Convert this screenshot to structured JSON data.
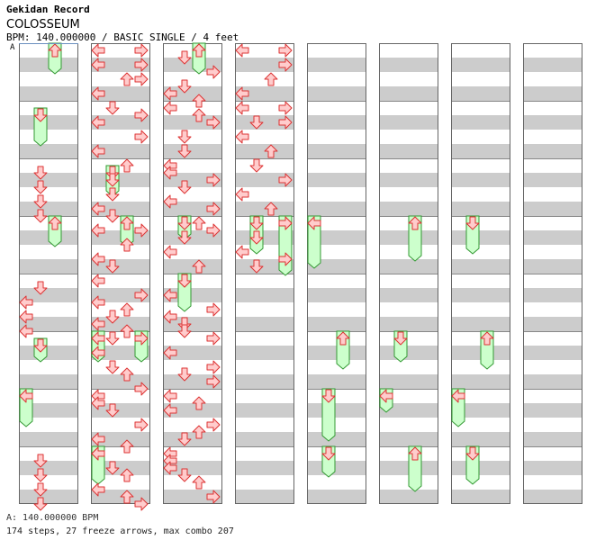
{
  "site_title": "Gekidan Record",
  "song_title": "COLOSSEUM",
  "chart_info": "BPM: 140.000000 / BASIC SINGLE / 4 feet",
  "bpm_marker": "A",
  "footer": {
    "bpm_line": "A: 140.000000 BPM",
    "stats_line": "174 steps, 27 freeze arrows, max combo 207"
  },
  "colors": {
    "stripe_gray": "#cccccc",
    "stripe_white": "#ffffff",
    "arrow_fill": "#ffcccc",
    "arrow_stroke": "#dd3333",
    "freeze_fill": "#ccffcc",
    "freeze_stroke": "#339933",
    "column_border": "#666666"
  },
  "chart_data": {
    "type": "stepchart",
    "lanes": [
      "left",
      "down",
      "up",
      "right"
    ],
    "columns": 8,
    "measures_per_column": 8,
    "beats_per_measure": 4,
    "bpm": 140,
    "difficulty": "BASIC",
    "feet": 4,
    "steps": 174,
    "freeze_arrows": 27,
    "max_combo": 207,
    "arrows": [
      [
        2,
        0.5,
        1
      ],
      [
        2,
        1.5,
        1
      ],
      [
        2,
        2.5,
        1
      ],
      [
        2,
        3.5,
        1
      ],
      [
        4,
        0.5,
        1
      ],
      [
        4,
        1.5,
        0
      ],
      [
        4,
        2.5,
        0
      ],
      [
        4,
        3.5,
        0
      ],
      [
        7,
        0.5,
        1
      ],
      [
        7,
        1.5,
        1
      ],
      [
        7,
        2.5,
        1
      ],
      [
        7,
        3.5,
        1
      ],
      [
        8,
        0.0,
        0
      ],
      [
        8,
        0.0,
        3
      ],
      [
        8,
        1.0,
        0
      ],
      [
        8,
        1.0,
        3
      ],
      [
        8,
        2.0,
        2
      ],
      [
        8,
        2.0,
        3
      ],
      [
        8,
        3.0,
        0
      ],
      [
        9,
        0.0,
        1
      ],
      [
        9,
        0.5,
        3
      ],
      [
        9,
        1.0,
        0
      ],
      [
        9,
        2.0,
        3
      ],
      [
        9,
        3.0,
        0
      ],
      [
        10,
        0.0,
        2
      ],
      [
        10,
        1.0,
        1
      ],
      [
        10,
        2.0,
        1
      ],
      [
        10,
        3.0,
        0
      ],
      [
        10,
        3.5,
        1
      ],
      [
        11,
        0.5,
        0
      ],
      [
        11,
        0.5,
        3
      ],
      [
        11,
        1.5,
        2
      ],
      [
        11,
        2.5,
        0
      ],
      [
        11,
        3.0,
        1
      ],
      [
        12,
        0.0,
        0
      ],
      [
        12,
        1.0,
        3
      ],
      [
        12,
        1.5,
        0
      ],
      [
        12,
        2.0,
        2
      ],
      [
        12,
        2.5,
        1
      ],
      [
        12,
        3.0,
        0
      ],
      [
        12,
        3.5,
        2
      ],
      [
        13,
        0.0,
        1
      ],
      [
        13,
        1.0,
        0
      ],
      [
        13,
        2.0,
        1
      ],
      [
        13,
        2.5,
        2
      ],
      [
        13,
        3.5,
        3
      ],
      [
        14,
        0.0,
        0
      ],
      [
        14,
        0.5,
        0
      ],
      [
        14,
        1.0,
        1
      ],
      [
        14,
        2.0,
        3
      ],
      [
        14,
        3.0,
        0
      ],
      [
        14,
        3.5,
        2
      ],
      [
        15,
        0.0,
        0
      ],
      [
        15,
        1.0,
        1
      ],
      [
        15,
        1.5,
        2
      ],
      [
        15,
        2.5,
        0
      ],
      [
        15,
        3.0,
        2
      ],
      [
        15,
        3.5,
        3
      ],
      [
        16,
        0.0,
        2
      ],
      [
        16,
        0.5,
        1
      ],
      [
        16,
        1.5,
        3
      ],
      [
        16,
        2.5,
        1
      ],
      [
        16,
        3.0,
        0
      ],
      [
        16,
        3.5,
        2
      ],
      [
        17,
        0.0,
        0
      ],
      [
        17,
        0.5,
        2
      ],
      [
        17,
        1.0,
        3
      ],
      [
        17,
        2.0,
        1
      ],
      [
        17,
        3.0,
        1
      ],
      [
        18,
        0.0,
        0
      ],
      [
        18,
        0.5,
        0
      ],
      [
        18,
        1.0,
        3
      ],
      [
        18,
        1.5,
        1
      ],
      [
        18,
        2.5,
        0
      ],
      [
        18,
        3.0,
        3
      ],
      [
        19,
        0.0,
        2
      ],
      [
        19,
        0.5,
        3
      ],
      [
        19,
        1.0,
        1
      ],
      [
        19,
        2.0,
        0
      ],
      [
        19,
        3.0,
        2
      ],
      [
        20,
        0.0,
        1
      ],
      [
        20,
        1.0,
        0
      ],
      [
        20,
        2.0,
        3
      ],
      [
        20,
        2.5,
        0
      ],
      [
        20,
        3.0,
        1
      ],
      [
        20,
        3.5,
        1
      ],
      [
        21,
        0.0,
        3
      ],
      [
        21,
        1.0,
        0
      ],
      [
        21,
        2.0,
        3
      ],
      [
        21,
        2.5,
        1
      ],
      [
        21,
        3.0,
        3
      ],
      [
        22,
        0.0,
        0
      ],
      [
        22,
        0.5,
        2
      ],
      [
        22,
        1.0,
        0
      ],
      [
        22,
        2.0,
        3
      ],
      [
        22,
        2.5,
        2
      ],
      [
        22,
        3.0,
        1
      ],
      [
        23,
        0.0,
        0
      ],
      [
        23,
        0.5,
        0
      ],
      [
        23,
        1.0,
        0
      ],
      [
        23,
        1.5,
        1
      ],
      [
        23,
        2.0,
        2
      ],
      [
        23,
        3.0,
        3
      ],
      [
        24,
        0.0,
        0
      ],
      [
        24,
        0.0,
        3
      ],
      [
        24,
        1.0,
        3
      ],
      [
        24,
        2.0,
        2
      ],
      [
        24,
        3.0,
        0
      ],
      [
        25,
        0.0,
        0
      ],
      [
        25,
        0.0,
        3
      ],
      [
        25,
        1.0,
        1
      ],
      [
        25,
        1.0,
        3
      ],
      [
        25,
        2.0,
        0
      ],
      [
        25,
        3.0,
        2
      ],
      [
        26,
        0.0,
        1
      ],
      [
        26,
        1.0,
        3
      ],
      [
        26,
        2.0,
        0
      ],
      [
        26,
        3.0,
        2
      ],
      [
        27,
        0.0,
        3
      ],
      [
        27,
        1.0,
        1
      ],
      [
        27,
        2.0,
        0
      ],
      [
        27,
        2.5,
        3
      ],
      [
        27,
        3.0,
        1
      ]
    ],
    "freezes": [
      [
        0,
        0.0,
        2.0,
        2
      ],
      [
        1,
        0.5,
        2.5,
        1
      ],
      [
        3,
        0.0,
        2.0,
        2
      ],
      [
        5,
        0.5,
        1.5,
        1
      ],
      [
        6,
        0.0,
        2.5,
        0
      ],
      [
        10,
        0.5,
        2.0,
        1
      ],
      [
        11,
        0.0,
        2.0,
        2
      ],
      [
        13,
        0.0,
        2.0,
        0
      ],
      [
        13,
        0.0,
        2.0,
        3
      ],
      [
        15,
        0.0,
        2.5,
        0
      ],
      [
        16,
        0.0,
        2.0,
        2
      ],
      [
        19,
        0.0,
        1.5,
        1
      ],
      [
        20,
        0.0,
        2.5,
        1
      ],
      [
        27,
        0.0,
        2.5,
        1
      ],
      [
        27,
        0.0,
        4.0,
        3
      ],
      [
        35,
        0.0,
        3.5,
        0
      ],
      [
        37,
        0.0,
        2.5,
        2
      ],
      [
        38,
        0.0,
        3.5,
        1
      ],
      [
        39,
        0.0,
        2.0,
        1
      ],
      [
        43,
        0.0,
        3.0,
        2
      ],
      [
        45,
        0.0,
        2.0,
        1
      ],
      [
        46,
        0.0,
        1.5,
        0
      ],
      [
        47,
        0.0,
        3.0,
        2
      ],
      [
        51,
        0.0,
        2.5,
        1
      ],
      [
        53,
        0.0,
        2.5,
        2
      ],
      [
        54,
        0.0,
        2.5,
        0
      ],
      [
        55,
        0.0,
        2.5,
        1
      ]
    ]
  }
}
